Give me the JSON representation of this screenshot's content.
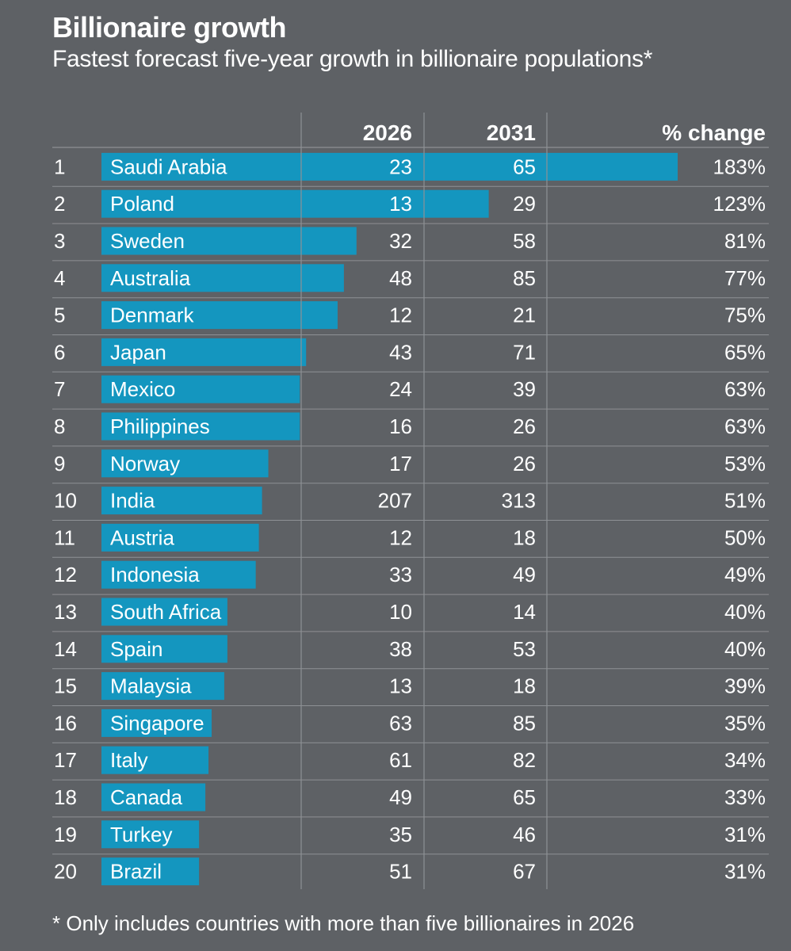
{
  "title": "Billionaire growth",
  "subtitle": "Fastest forecast five-year growth in billionaire populations*",
  "footnote": "* Only includes countries with more than five billionaires in 2026",
  "bar_color": "#1496bf",
  "chart_data": {
    "type": "table",
    "columns": [
      "2026",
      "2031",
      "% change"
    ],
    "rows": [
      {
        "rank": "1",
        "country": "Saudi Arabia",
        "y2026": "23",
        "y2031": "65",
        "change": "183%",
        "change_value": 183
      },
      {
        "rank": "2",
        "country": "Poland",
        "y2026": "13",
        "y2031": "29",
        "change": "123%",
        "change_value": 123
      },
      {
        "rank": "3",
        "country": "Sweden",
        "y2026": "32",
        "y2031": "58",
        "change": "81%",
        "change_value": 81
      },
      {
        "rank": "4",
        "country": "Australia",
        "y2026": "48",
        "y2031": "85",
        "change": "77%",
        "change_value": 77
      },
      {
        "rank": "5",
        "country": "Denmark",
        "y2026": "12",
        "y2031": "21",
        "change": "75%",
        "change_value": 75
      },
      {
        "rank": "6",
        "country": "Japan",
        "y2026": "43",
        "y2031": "71",
        "change": "65%",
        "change_value": 65
      },
      {
        "rank": "7",
        "country": "Mexico",
        "y2026": "24",
        "y2031": "39",
        "change": "63%",
        "change_value": 63
      },
      {
        "rank": "8",
        "country": "Philippines",
        "y2026": "16",
        "y2031": "26",
        "change": "63%",
        "change_value": 63
      },
      {
        "rank": "9",
        "country": "Norway",
        "y2026": "17",
        "y2031": "26",
        "change": "53%",
        "change_value": 53
      },
      {
        "rank": "10",
        "country": "India",
        "y2026": "207",
        "y2031": "313",
        "change": "51%",
        "change_value": 51
      },
      {
        "rank": "11",
        "country": "Austria",
        "y2026": "12",
        "y2031": "18",
        "change": "50%",
        "change_value": 50
      },
      {
        "rank": "12",
        "country": "Indonesia",
        "y2026": "33",
        "y2031": "49",
        "change": "49%",
        "change_value": 49
      },
      {
        "rank": "13",
        "country": "South Africa",
        "y2026": "10",
        "y2031": "14",
        "change": "40%",
        "change_value": 40
      },
      {
        "rank": "14",
        "country": "Spain",
        "y2026": "38",
        "y2031": "53",
        "change": "40%",
        "change_value": 40
      },
      {
        "rank": "15",
        "country": "Malaysia",
        "y2026": "13",
        "y2031": "18",
        "change": "39%",
        "change_value": 39
      },
      {
        "rank": "16",
        "country": "Singapore",
        "y2026": "63",
        "y2031": "85",
        "change": "35%",
        "change_value": 35
      },
      {
        "rank": "17",
        "country": "Italy",
        "y2026": "61",
        "y2031": "82",
        "change": "34%",
        "change_value": 34
      },
      {
        "rank": "18",
        "country": "Canada",
        "y2026": "49",
        "y2031": "65",
        "change": "33%",
        "change_value": 33
      },
      {
        "rank": "19",
        "country": "Turkey",
        "y2026": "35",
        "y2031": "46",
        "change": "31%",
        "change_value": 31
      },
      {
        "rank": "20",
        "country": "Brazil",
        "y2026": "51",
        "y2031": "67",
        "change": "31%",
        "change_value": 31
      }
    ]
  }
}
